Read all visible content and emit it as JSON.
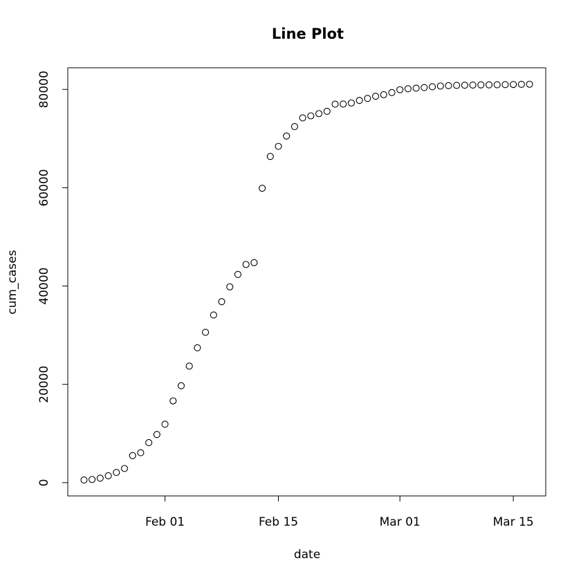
{
  "chart_data": {
    "type": "scatter",
    "title": "Line Plot",
    "x_label": "date",
    "y_label": "cum_cases",
    "x": [
      "Jan 22",
      "Jan 23",
      "Jan 24",
      "Jan 25",
      "Jan 26",
      "Jan 27",
      "Jan 28",
      "Jan 29",
      "Jan 30",
      "Jan 31",
      "Feb 01",
      "Feb 02",
      "Feb 03",
      "Feb 04",
      "Feb 05",
      "Feb 06",
      "Feb 07",
      "Feb 08",
      "Feb 09",
      "Feb 10",
      "Feb 11",
      "Feb 12",
      "Feb 13",
      "Feb 14",
      "Feb 15",
      "Feb 16",
      "Feb 17",
      "Feb 18",
      "Feb 19",
      "Feb 20",
      "Feb 21",
      "Feb 22",
      "Feb 23",
      "Feb 24",
      "Feb 25",
      "Feb 26",
      "Feb 27",
      "Feb 28",
      "Feb 29",
      "Mar 01",
      "Mar 02",
      "Mar 03",
      "Mar 04",
      "Mar 05",
      "Mar 06",
      "Mar 07",
      "Mar 08",
      "Mar 09",
      "Mar 10",
      "Mar 11",
      "Mar 12",
      "Mar 13",
      "Mar 14",
      "Mar 15",
      "Mar 16",
      "Mar 17"
    ],
    "values": [
      548,
      643,
      920,
      1406,
      2075,
      2877,
      5509,
      6087,
      8141,
      9802,
      11891,
      16630,
      19716,
      23707,
      27440,
      30587,
      34110,
      36814,
      39829,
      42354,
      44386,
      44759,
      59895,
      66358,
      68413,
      70513,
      72434,
      74211,
      74619,
      75077,
      75550,
      77001,
      77022,
      77241,
      77754,
      78166,
      78600,
      78928,
      79356,
      79932,
      80136,
      80261,
      80386,
      80537,
      80690,
      80770,
      80823,
      80860,
      80887,
      80921,
      80932,
      80945,
      80977,
      81003,
      81033,
      81058
    ],
    "color": "#000000",
    "xlim": [
      "Jan 20",
      "Mar 19"
    ],
    "xticks": [
      "Feb 01",
      "Feb 15",
      "Mar 01",
      "Mar 15"
    ],
    "ylim": [
      -2700,
      84400
    ],
    "yticks": [
      0,
      20000,
      40000,
      60000,
      80000
    ]
  }
}
